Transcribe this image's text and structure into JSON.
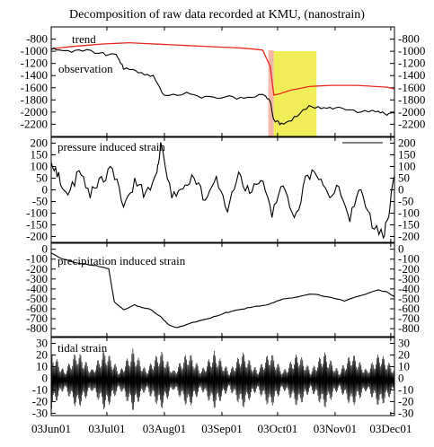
{
  "title": "Decomposition of raw data recorded at KMU, (nanostrain)",
  "x_tick_labels": [
    "03Jun01",
    "03Jul01",
    "03Aug01",
    "03Sep01",
    "03Oct01",
    "03Nov01",
    "03Dec01"
  ],
  "colors": {
    "observation": "#000000",
    "trend": "#e8281e",
    "highlight_yellow": "#f2ee5a",
    "highlight_pink": "#f6b8a8",
    "frame": "#000000"
  },
  "chart_data": [
    {
      "type": "line",
      "xlim": [
        "2001-06-03",
        "2001-12-05"
      ],
      "ylim": [
        -2400,
        -600
      ],
      "y_ticks": [
        -800,
        -1000,
        -1200,
        -1400,
        -1600,
        -1800,
        -2000,
        -2200
      ],
      "right_axis": true,
      "shaded_spans": [
        {
          "x": [
            "2001-09-28",
            "2001-10-01"
          ],
          "color": "pink"
        },
        {
          "x": [
            "2001-10-01",
            "2001-10-24"
          ],
          "color": "yellow"
        }
      ],
      "series": [
        {
          "name": "trend",
          "color": "red",
          "x": [
            "2001-06-03",
            "2001-06-15",
            "2001-07-01",
            "2001-07-15",
            "2001-08-01",
            "2001-08-15",
            "2001-09-01",
            "2001-09-15",
            "2001-09-25",
            "2001-09-29",
            "2001-10-01",
            "2001-10-04",
            "2001-10-10",
            "2001-10-20",
            "2001-11-01",
            "2001-11-15",
            "2001-12-01",
            "2001-12-05"
          ],
          "y": [
            -960,
            -920,
            -880,
            -860,
            -885,
            -905,
            -930,
            -950,
            -980,
            -1250,
            -1720,
            -1700,
            -1640,
            -1580,
            -1560,
            -1560,
            -1590,
            -1620
          ]
        },
        {
          "name": "observation",
          "color": "black",
          "x": [
            "2001-06-03",
            "2001-06-10",
            "2001-06-20",
            "2001-07-01",
            "2001-07-08",
            "2001-07-12",
            "2001-07-20",
            "2001-07-28",
            "2001-08-03",
            "2001-08-15",
            "2001-08-25",
            "2001-09-05",
            "2001-09-15",
            "2001-09-25",
            "2001-09-29",
            "2001-10-01",
            "2001-10-05",
            "2001-10-12",
            "2001-10-20",
            "2001-10-28",
            "2001-11-05",
            "2001-11-15",
            "2001-11-25",
            "2001-12-01",
            "2001-12-05"
          ],
          "y": [
            -960,
            -1000,
            -980,
            -1040,
            -1060,
            -1280,
            -1340,
            -1420,
            -1720,
            -1700,
            -1760,
            -1740,
            -1780,
            -1700,
            -1820,
            -2130,
            -2200,
            -2100,
            -1900,
            -1950,
            -1930,
            -2000,
            -1980,
            -2050,
            -2020
          ]
        }
      ]
    },
    {
      "type": "line",
      "xlim": [
        "2001-06-03",
        "2001-12-05"
      ],
      "ylim": [
        -225,
        225
      ],
      "y_ticks": [
        200,
        150,
        100,
        50,
        0,
        -50,
        -100,
        -150,
        -200
      ],
      "right_axis": true,
      "series": [
        {
          "name": "pressure induced strain",
          "color": "black",
          "x": [
            "2001-06-03",
            "2001-06-07",
            "2001-06-12",
            "2001-06-18",
            "2001-06-24",
            "2001-06-30",
            "2001-07-06",
            "2001-07-12",
            "2001-07-18",
            "2001-07-24",
            "2001-07-30",
            "2001-08-01",
            "2001-08-07",
            "2001-08-13",
            "2001-08-19",
            "2001-08-25",
            "2001-08-31",
            "2001-09-06",
            "2001-09-12",
            "2001-09-18",
            "2001-09-24",
            "2001-09-30",
            "2001-10-06",
            "2001-10-12",
            "2001-10-18",
            "2001-10-24",
            "2001-10-30",
            "2001-11-05",
            "2001-11-11",
            "2001-11-17",
            "2001-11-23",
            "2001-11-29",
            "2001-12-02",
            "2001-12-05"
          ],
          "y": [
            130,
            60,
            -30,
            80,
            -20,
            40,
            90,
            -60,
            30,
            -20,
            60,
            190,
            -40,
            10,
            70,
            -60,
            40,
            -80,
            60,
            -20,
            50,
            -110,
            30,
            -140,
            40,
            80,
            -30,
            20,
            -120,
            10,
            -150,
            -200,
            -90,
            60
          ]
        }
      ]
    },
    {
      "type": "line",
      "xlim": [
        "2001-06-03",
        "2001-12-05"
      ],
      "ylim": [
        -880,
        60
      ],
      "y_ticks": [
        0,
        -100,
        -200,
        -300,
        -400,
        -500,
        -600,
        -700,
        -800
      ],
      "right_axis": true,
      "series": [
        {
          "name": "precipitation induced strain",
          "color": "black",
          "x": [
            "2001-06-03",
            "2001-06-08",
            "2001-06-15",
            "2001-06-25",
            "2001-07-01",
            "2001-07-04",
            "2001-07-07",
            "2001-07-12",
            "2001-07-18",
            "2001-07-22",
            "2001-07-26",
            "2001-08-01",
            "2001-08-05",
            "2001-08-10",
            "2001-08-18",
            "2001-08-28",
            "2001-09-05",
            "2001-09-12",
            "2001-09-20",
            "2001-09-28",
            "2001-10-06",
            "2001-10-14",
            "2001-10-22",
            "2001-10-30",
            "2001-11-08",
            "2001-11-18",
            "2001-11-26",
            "2001-12-01",
            "2001-12-05"
          ],
          "y": [
            -40,
            -90,
            -130,
            -160,
            -180,
            -200,
            -530,
            -610,
            -560,
            -590,
            -600,
            -680,
            -760,
            -790,
            -740,
            -690,
            -640,
            -610,
            -580,
            -560,
            -500,
            -480,
            -450,
            -480,
            -520,
            -460,
            -410,
            -430,
            -480
          ]
        }
      ]
    },
    {
      "type": "line",
      "xlim": [
        "2001-06-03",
        "2001-12-05"
      ],
      "ylim": [
        -32,
        35
      ],
      "y_ticks": [
        30,
        20,
        10,
        0,
        -10,
        -20,
        -30
      ],
      "right_axis": true,
      "series": [
        {
          "name": "tidal strain",
          "color": "black",
          "envelope": {
            "x": [
              "2001-06-03",
              "2001-06-10",
              "2001-06-17",
              "2001-06-25",
              "2001-07-02",
              "2001-07-10",
              "2001-07-17",
              "2001-07-24",
              "2001-08-01",
              "2001-08-08",
              "2001-08-16",
              "2001-08-23",
              "2001-08-30",
              "2001-09-07",
              "2001-09-14",
              "2001-09-22",
              "2001-09-29",
              "2001-10-06",
              "2001-10-14",
              "2001-10-21",
              "2001-10-28",
              "2001-11-05",
              "2001-11-12",
              "2001-11-20",
              "2001-11-27",
              "2001-12-05"
            ],
            "amplitude": [
              26,
              8,
              26,
              9,
              27,
              8,
              27,
              9,
              26,
              8,
              25,
              9,
              25,
              8,
              25,
              9,
              25,
              8,
              24,
              9,
              25,
              8,
              24,
              9,
              24,
              10
            ]
          }
        }
      ]
    }
  ]
}
